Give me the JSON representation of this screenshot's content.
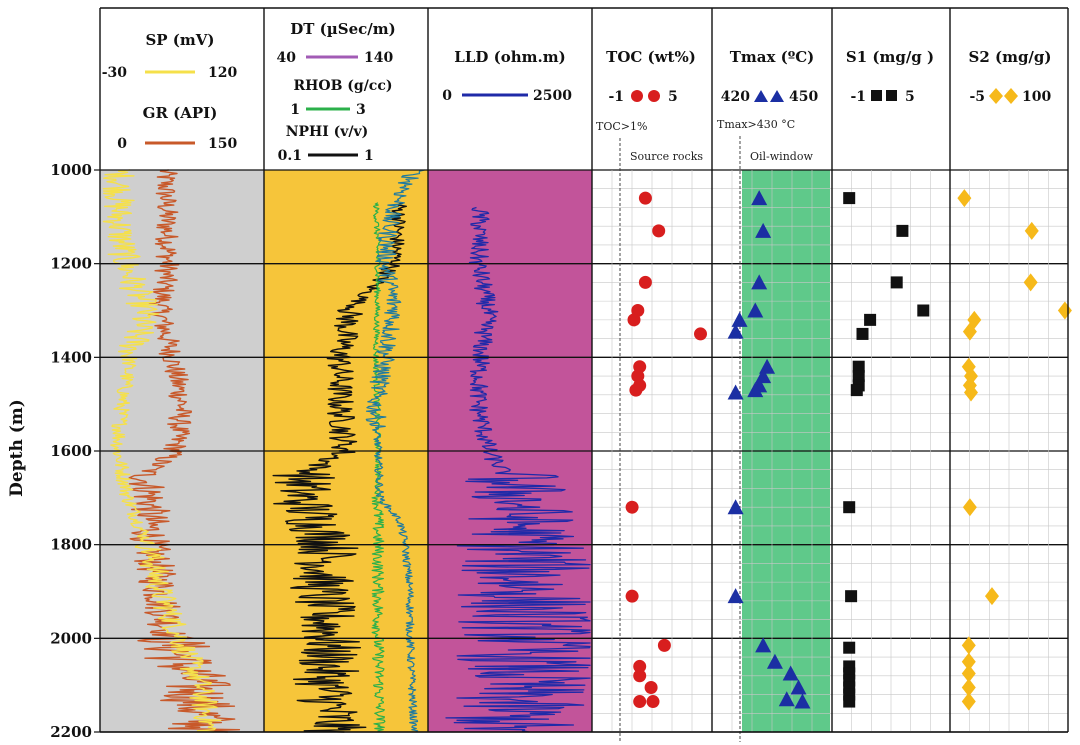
{
  "chart_data": {
    "type": "well-log",
    "ylabel": "Depth (m)",
    "ylim": [
      1000,
      2200
    ],
    "yticks": [
      "1000",
      "1200",
      "1400",
      "1600",
      "1800",
      "2000",
      "2200"
    ],
    "tracks": [
      {
        "id": "sp-gr",
        "background": "#cfcfcf",
        "curves": [
          {
            "title": "SP (mV)",
            "min": "-30",
            "max": "120",
            "color": "#f5e04a"
          },
          {
            "title": "GR (API)",
            "min": "0",
            "max": "150",
            "color": "#c8592a"
          }
        ]
      },
      {
        "id": "dt-rhob-nphi",
        "background": "#f6c53a",
        "curves": [
          {
            "title": "DT (µSec/m)",
            "min": "40",
            "max": "140",
            "color": "#a25bb5"
          },
          {
            "title": "RHOB (g/cc)",
            "min": "1",
            "max": "3",
            "color": "#2bb04a"
          },
          {
            "title": "NPHI (v/v)",
            "min": "0.1",
            "max": "1",
            "color": "#111111"
          }
        ]
      },
      {
        "id": "lld",
        "background": "#c2549a",
        "curves": [
          {
            "title": "LLD (ohm.m)",
            "min": "0",
            "max": "2500",
            "color": "#1f2aa8"
          }
        ]
      }
    ],
    "series": [
      {
        "name": "TOC (wt%)",
        "min": "-1",
        "max": "5",
        "marker": "circle",
        "color": "#d81e1e",
        "threshold_label": "TOC>1%",
        "zone_label": "Source rocks",
        "points": [
          [
            1.6,
            1060
          ],
          [
            2.3,
            1130
          ],
          [
            1.6,
            1240
          ],
          [
            1.2,
            1300
          ],
          [
            1.0,
            1320
          ],
          [
            4.5,
            1350
          ],
          [
            1.3,
            1420
          ],
          [
            1.2,
            1440
          ],
          [
            1.3,
            1460
          ],
          [
            1.1,
            1470
          ],
          [
            0.9,
            1720
          ],
          [
            0.9,
            1910
          ],
          [
            2.6,
            2015
          ],
          [
            1.3,
            2060
          ],
          [
            1.3,
            2080
          ],
          [
            1.9,
            2105
          ],
          [
            2.0,
            2135
          ],
          [
            1.3,
            2135
          ]
        ]
      },
      {
        "name": "Tmax (ºC)",
        "min": "420",
        "max": "450",
        "marker": "triangle",
        "color": "#1b2fa3",
        "threshold_label": "Tmax>430 °C",
        "zone_label": "Oil-window",
        "points": [
          [
            432,
            1060
          ],
          [
            433,
            1130
          ],
          [
            432,
            1240
          ],
          [
            431,
            1300
          ],
          [
            427,
            1320
          ],
          [
            426,
            1345
          ],
          [
            434,
            1420
          ],
          [
            433,
            1440
          ],
          [
            432,
            1460
          ],
          [
            431,
            1470
          ],
          [
            426,
            1475
          ],
          [
            426,
            1720
          ],
          [
            426,
            1910
          ],
          [
            433,
            2015
          ],
          [
            436,
            2050
          ],
          [
            440,
            2075
          ],
          [
            442,
            2105
          ],
          [
            439,
            2130
          ],
          [
            443,
            2135
          ]
        ]
      },
      {
        "name": "S1 (mg/g )",
        "min": "-1",
        "max": "5",
        "marker": "square",
        "color": "#111111",
        "points": [
          [
            -0.2,
            1060
          ],
          [
            2.6,
            1130
          ],
          [
            2.3,
            1240
          ],
          [
            3.7,
            1300
          ],
          [
            0.9,
            1320
          ],
          [
            0.5,
            1350
          ],
          [
            0.3,
            1420
          ],
          [
            0.3,
            1440
          ],
          [
            0.3,
            1460
          ],
          [
            0.2,
            1470
          ],
          [
            -0.2,
            1720
          ],
          [
            -0.1,
            1910
          ],
          [
            -0.2,
            2020
          ],
          [
            -0.2,
            2060
          ],
          [
            -0.2,
            2075
          ],
          [
            -0.2,
            2090
          ],
          [
            -0.2,
            2105
          ],
          [
            -0.2,
            2120
          ],
          [
            -0.2,
            2135
          ]
        ]
      },
      {
        "name": "S2 (mg/g)",
        "min": "-5",
        "max": "100",
        "marker": "diamond",
        "color": "#f6b91a",
        "points": [
          [
            8,
            1060
          ],
          [
            69,
            1130
          ],
          [
            68,
            1240
          ],
          [
            99,
            1300
          ],
          [
            17,
            1320
          ],
          [
            13,
            1345
          ],
          [
            12,
            1420
          ],
          [
            14,
            1440
          ],
          [
            13,
            1460
          ],
          [
            14,
            1475
          ],
          [
            13,
            1720
          ],
          [
            33,
            1910
          ],
          [
            12,
            2015
          ],
          [
            12,
            2050
          ],
          [
            12,
            2075
          ],
          [
            12,
            2105
          ],
          [
            12,
            2135
          ]
        ]
      }
    ]
  }
}
